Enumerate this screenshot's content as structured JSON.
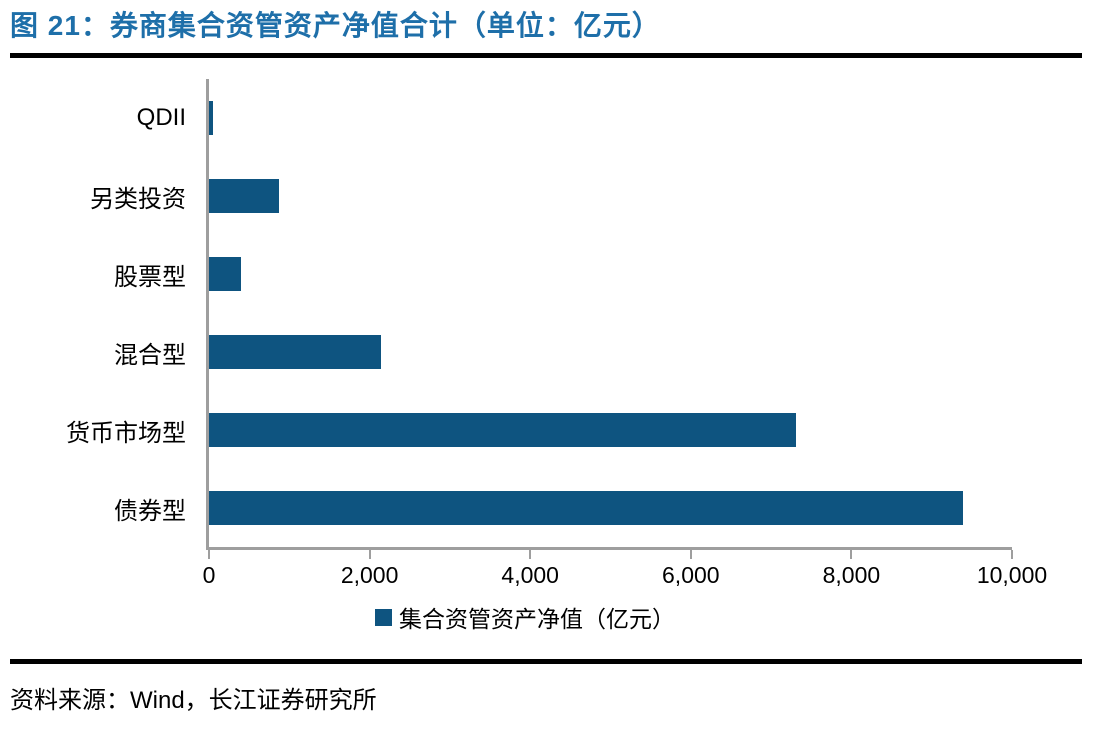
{
  "figure": {
    "title": "图 21：券商集合资管资产净值合计（单位：亿元）",
    "source": "资料来源：Wind，长江证券研究所"
  },
  "chart_data": {
    "type": "bar",
    "orientation": "horizontal",
    "title": "券商集合资管资产净值合计（单位：亿元）",
    "figure_number": "图 21",
    "categories": [
      "QDII",
      "另类投资",
      "股票型",
      "混合型",
      "货币市场型",
      "债券型"
    ],
    "values": [
      50,
      880,
      400,
      2150,
      7340,
      9420
    ],
    "series": [
      {
        "name": "集合资管资产净值（亿元）",
        "values": [
          50,
          880,
          400,
          2150,
          7340,
          9420
        ]
      }
    ],
    "xlim": [
      0,
      10000
    ],
    "xticks": [
      0,
      2000,
      4000,
      6000,
      8000,
      10000
    ],
    "xtick_labels": [
      "0",
      "2,000",
      "4,000",
      "6,000",
      "8,000",
      "10,000"
    ],
    "ylabel": "",
    "xlabel": "",
    "grid": false,
    "legend_position": "bottom",
    "unit": "亿元",
    "source": "Wind，长江证券研究所"
  },
  "legend": {
    "label": "集合资管资产净值（亿元）"
  },
  "colors": {
    "title_blue": "#1E6FA9",
    "bar_blue": "#0E5480",
    "axis_gray": "#9E9E9E",
    "rule_black": "#000000",
    "text_black": "#000000"
  }
}
